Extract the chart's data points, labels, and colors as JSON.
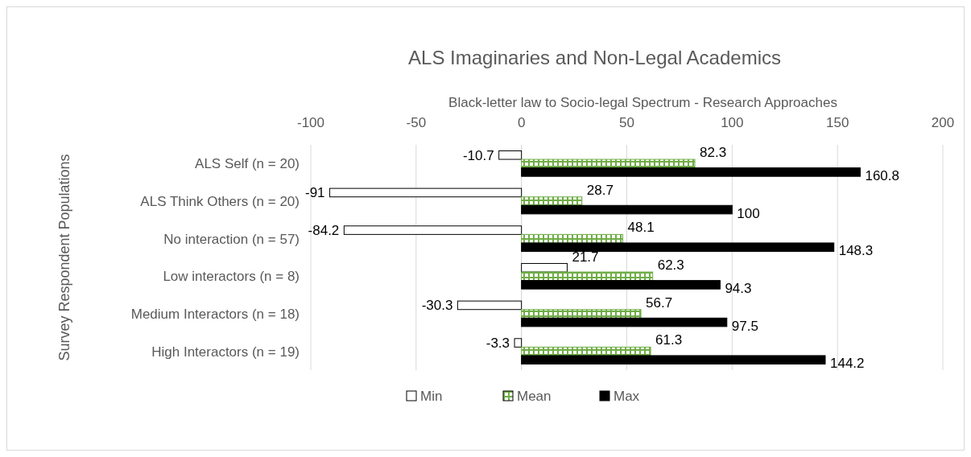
{
  "chart_data": {
    "type": "bar",
    "orientation": "horizontal",
    "title": "ALS Imaginaries and Non-Legal Academics",
    "xlabel": "Black-letter law to Socio-legal Spectrum - Research Approaches",
    "ylabel": "Survey Respondent Populations",
    "categories": [
      "ALS Self (n = 20)",
      "ALS Think Others (n = 20)",
      "No interaction (n = 57)",
      "Low interactors (n = 8)",
      "Medium Interactors (n = 18)",
      "High Interactors (n = 19)"
    ],
    "series": [
      {
        "name": "Min",
        "color": "#ffffff",
        "values": [
          -10.7,
          -91,
          -84.2,
          21.7,
          -30.3,
          -3.3
        ]
      },
      {
        "name": "Mean",
        "color": "#70ad47",
        "values": [
          82.3,
          28.7,
          48.1,
          62.3,
          56.7,
          61.3
        ]
      },
      {
        "name": "Max",
        "color": "#000000",
        "values": [
          160.8,
          100,
          148.3,
          94.3,
          97.5,
          144.2
        ]
      }
    ],
    "xlim": [
      -100,
      200
    ],
    "xticks": [
      -100,
      -50,
      0,
      50,
      100,
      150,
      200
    ],
    "grid": "x",
    "legend": "bottom",
    "data_labels": true
  }
}
